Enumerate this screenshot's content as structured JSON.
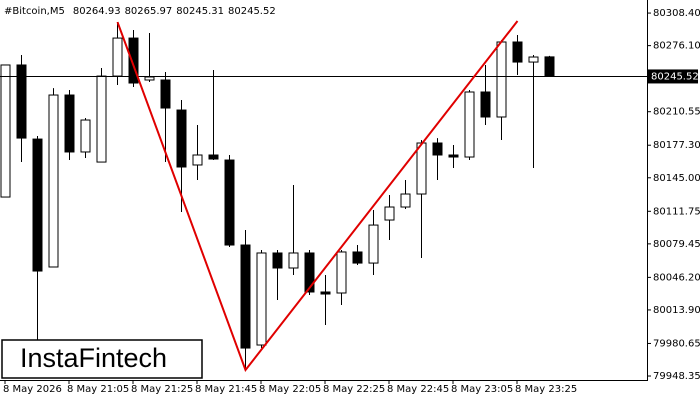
{
  "chart_data": {
    "type": "candlestick",
    "symbol": "#Bitcoin,M5",
    "watermark": "InstaFintech",
    "categories": [
      "8 May 2026",
      null,
      null,
      null,
      "8 May 21:05",
      null,
      null,
      null,
      "8 May 21:25",
      null,
      null,
      null,
      "8 May 21:45",
      null,
      null,
      null,
      "8 May 22:05",
      null,
      null,
      null,
      "8 May 22:25",
      null,
      null,
      null,
      "8 May 22:45",
      null,
      null,
      null,
      "8 May 23:05",
      null,
      null,
      null,
      "8 May 23:25",
      null,
      null
    ],
    "open": [
      80125.9,
      80256.9,
      80183.4,
      80056.5,
      80227.1,
      80170.6,
      80160.6,
      80245.9,
      80283.6,
      80242.0,
      80242.0,
      80212.2,
      80157.7,
      80167.6,
      80162.6,
      80078.3,
      79979.1,
      80070.4,
      80055.5,
      80070.4,
      80031.7,
      80030.7,
      80071.4,
      80060.4,
      80103.1,
      80116.0,
      80128.9,
      80179.5,
      80167.6,
      80165.6,
      80230.1,
      80205.3,
      80279.7,
      80259.8,
      80264.93
    ],
    "high": [
      80256.9,
      80266.8,
      80186.4,
      80234.0,
      80232.1,
      80204.3,
      80253.9,
      80299.5,
      80291.6,
      80288.6,
      80249.9,
      80222.1,
      80197.4,
      80251.9,
      80167.6,
      80093.2,
      80073.3,
      80073.3,
      80137.8,
      80073.3,
      80048.5,
      80073.3,
      80078.3,
      80113.0,
      80127.9,
      80142.8,
      80182.5,
      80184.4,
      80177.5,
      80232.1,
      80256.9,
      80281.7,
      80286.6,
      80266.8,
      80265.97
    ],
    "low": [
      80125.9,
      80160.6,
      79979.1,
      80056.5,
      80162.6,
      80164.6,
      80160.6,
      80237.0,
      80235.0,
      80240.0,
      80160.6,
      80111.0,
      80142.8,
      80162.6,
      80076.3,
      79956.3,
      79976.1,
      80023.7,
      80048.5,
      80028.7,
      79998.9,
      80018.8,
      80058.5,
      80048.5,
      80083.3,
      80114.0,
      80065.4,
      80142.8,
      80154.7,
      80162.6,
      80197.4,
      80182.5,
      80246.9,
      80154.7,
      80245.31
    ],
    "close": [
      80256.9,
      80184.4,
      80052.5,
      80227.1,
      80170.6,
      80202.3,
      80245.9,
      80283.6,
      80239.0,
      80245.0,
      80214.2,
      80155.7,
      80167.6,
      80163.6,
      80078.3,
      79976.1,
      80070.4,
      80055.5,
      80070.4,
      80031.7,
      80029.7,
      80071.4,
      80060.4,
      80098.1,
      80116.0,
      80128.9,
      80179.5,
      80167.6,
      80165.6,
      80230.1,
      80205.3,
      80279.7,
      80259.8,
      80264.8,
      80245.52
    ],
    "ylim": [
      79944.4,
      80316.4
    ],
    "yticks": [
      {
        "value": 80308.4,
        "label": "80308.40"
      },
      {
        "value": 80276.1,
        "label": "80276.10"
      },
      80210.55,
      {
        "value": 80177.3,
        "label": "80177.30"
      },
      {
        "value": 80145.0,
        "label": "80145.00"
      },
      80111.75,
      80079.45,
      {
        "value": 80046.2,
        "label": "80046.20"
      },
      {
        "value": 80013.9,
        "label": "80013.90"
      },
      79980.65,
      79948.35
    ],
    "pattern": {
      "x": [
        7,
        15,
        32
      ],
      "y": [
        80299.5,
        79954.3,
        80300.5
      ],
      "color": "#e00000"
    },
    "up_color": "#ffffff",
    "down_color": "#000000"
  }
}
